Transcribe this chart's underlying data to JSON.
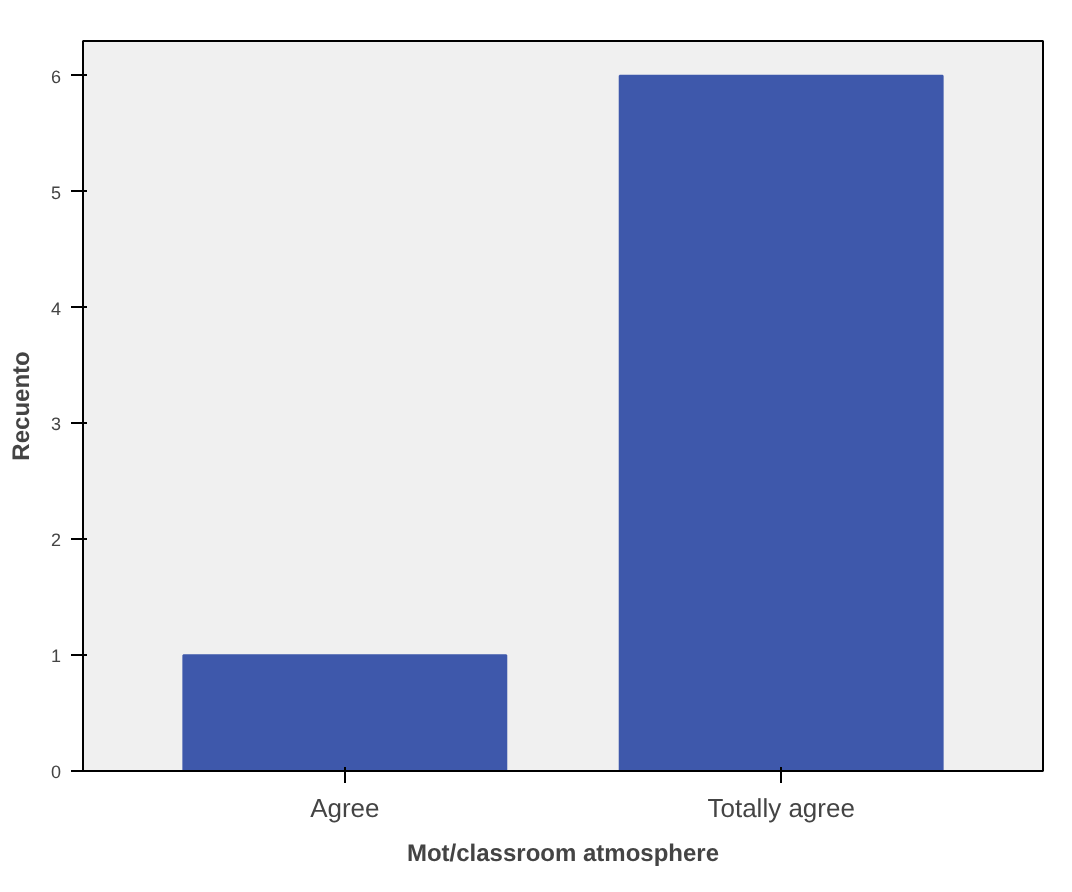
{
  "chart_data": {
    "type": "bar",
    "xlabel": "Mot/classroom atmosphere",
    "ylabel": "Recuento",
    "categories": [
      "Agree",
      "Totally agree"
    ],
    "values": [
      1,
      6
    ],
    "color": "#3e58ab",
    "ylim": [
      0,
      6.3
    ],
    "yticks": [
      0,
      1,
      2,
      3,
      4,
      5,
      6
    ],
    "grid": false
  }
}
